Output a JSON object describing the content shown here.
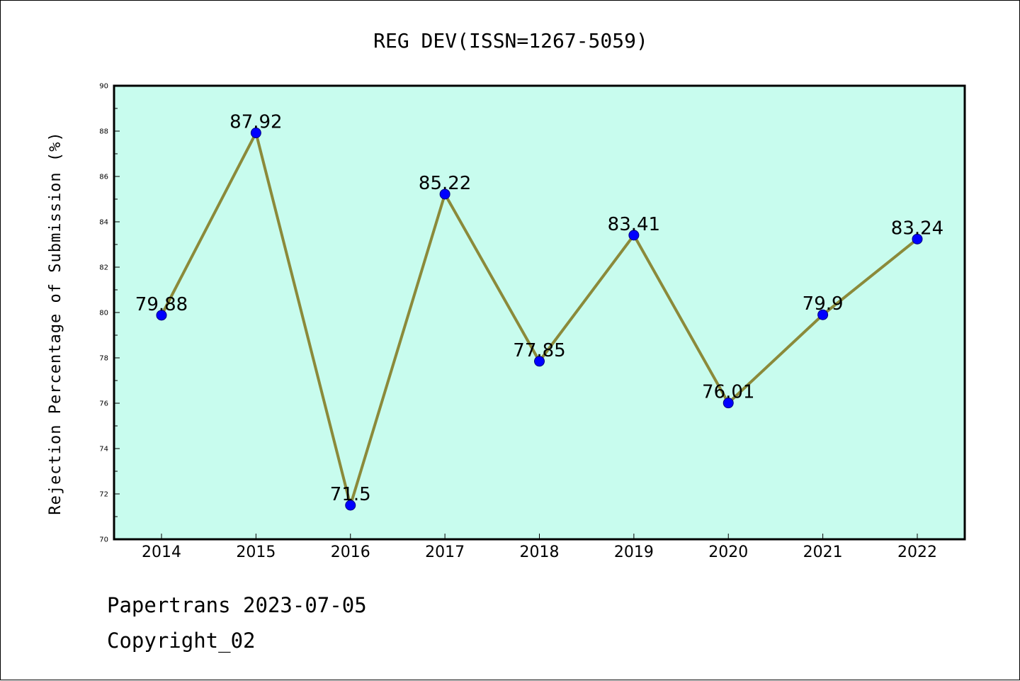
{
  "chart_data": {
    "type": "line",
    "title": "REG DEV(ISSN=1267-5059)",
    "xlabel": "",
    "ylabel": "Rejection Percentage of Submission (%)",
    "categories": [
      "2014",
      "2015",
      "2016",
      "2017",
      "2018",
      "2019",
      "2020",
      "2021",
      "2022"
    ],
    "series": [
      {
        "values": [
          79.88,
          87.92,
          71.5,
          85.22,
          77.85,
          83.41,
          76.01,
          79.9,
          83.24
        ],
        "labels": [
          "79.88",
          "87.92",
          "71.5",
          "85.22",
          "77.85",
          "83.41",
          "76.01",
          "79.9",
          "83.24"
        ]
      }
    ],
    "ylim": [
      70,
      90
    ],
    "yticks": [
      "70",
      "72",
      "74",
      "76",
      "78",
      "80",
      "82",
      "84",
      "86",
      "88",
      "90"
    ],
    "grid": false,
    "legend": "none",
    "colors": {
      "plot_background": "#c8fcee",
      "line": "#8b8a3a",
      "marker": "#0000ff",
      "axis": "#000000"
    }
  },
  "footer": {
    "line1": "Papertrans 2023-07-05",
    "line2": "Copyright_02"
  }
}
